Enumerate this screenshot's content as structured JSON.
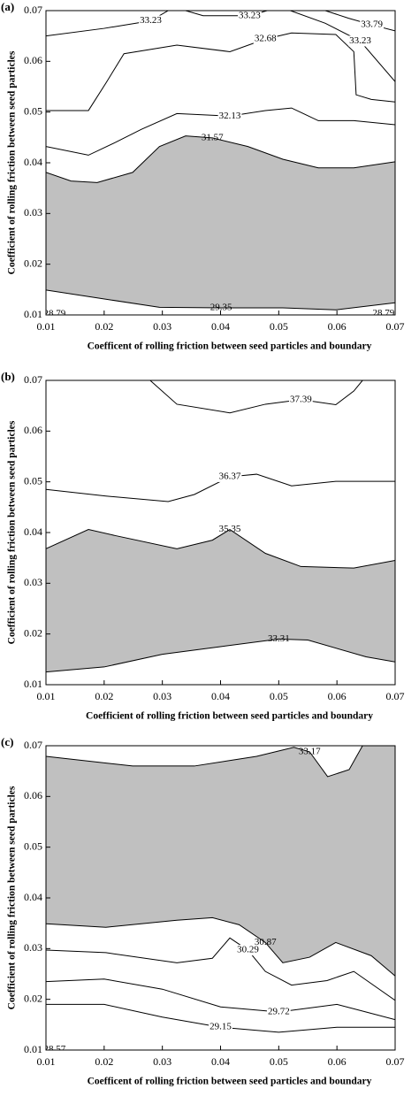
{
  "chart_data": [
    {
      "type": "contour",
      "panel": "(a)",
      "xlabel": "Coefficent of rolling friction between seed particles and boundary",
      "ylabel": "Coefficient of rolling friction between seed particles",
      "xlim": [
        0.01,
        0.07
      ],
      "ylim": [
        0.01,
        0.07
      ],
      "xticks": [
        0.01,
        0.02,
        0.03,
        0.04,
        0.05,
        0.06,
        0.07
      ],
      "yticks": [
        0.01,
        0.02,
        0.03,
        0.04,
        0.05,
        0.06,
        0.07
      ],
      "line_color": "#000000",
      "shade_color": "#c0c0c0",
      "contours": [
        {
          "level": 33.23,
          "x": [
            0.01,
            0.02,
            0.028,
            0.031
          ],
          "y": [
            0.065,
            0.0665,
            0.068,
            0.07
          ]
        },
        {
          "level": 33.23,
          "x": [
            0.034,
            0.037,
            0.045,
            0.048
          ],
          "y": [
            0.07,
            0.069,
            0.069,
            0.07
          ]
        },
        {
          "level": 33.79,
          "x": [
            0.058,
            0.062,
            0.066,
            0.07
          ],
          "y": [
            0.07,
            0.0685,
            0.0672,
            0.066
          ]
        },
        {
          "level": 33.23,
          "x": [
            0.052,
            0.058,
            0.064,
            0.07
          ],
          "y": [
            0.07,
            0.0675,
            0.064,
            0.056
          ]
        },
        {
          "level": 32.68,
          "x": [
            0.01,
            0.0173,
            0.0204,
            0.0234,
            0.0325,
            0.0416,
            0.0477,
            0.0522,
            0.0598,
            0.0629,
            0.0633,
            0.0659,
            0.07
          ],
          "y": [
            0.0503,
            0.0503,
            0.0559,
            0.0615,
            0.0632,
            0.0619,
            0.0644,
            0.0656,
            0.0653,
            0.0619,
            0.0534,
            0.0525,
            0.052
          ]
        },
        {
          "level": 32.13,
          "x": [
            0.01,
            0.0173,
            0.0219,
            0.0264,
            0.0325,
            0.0416,
            0.0477,
            0.0522,
            0.0568,
            0.0629,
            0.07
          ],
          "y": [
            0.0432,
            0.0415,
            0.044,
            0.0466,
            0.0497,
            0.0492,
            0.0503,
            0.0508,
            0.0483,
            0.0483,
            0.0475
          ]
        },
        {
          "level": 31.57,
          "shaded": true,
          "x": [
            0.01,
            0.0143,
            0.0188,
            0.0249,
            0.0295,
            0.034,
            0.0386,
            0.0447,
            0.0507,
            0.0568,
            0.0629,
            0.07
          ],
          "y": [
            0.0381,
            0.0364,
            0.0361,
            0.0381,
            0.0432,
            0.0453,
            0.0449,
            0.0432,
            0.0407,
            0.039,
            0.039,
            0.0402
          ]
        },
        {
          "level": 29.35,
          "x": [
            0.01,
            0.0203,
            0.0295,
            0.0401,
            0.0507,
            0.0598,
            0.07
          ],
          "y": [
            0.0149,
            0.0131,
            0.0115,
            0.0114,
            0.0114,
            0.011,
            0.0124
          ]
        },
        {
          "level": 28.79,
          "x": [
            0.01,
            0.0115,
            0.013
          ],
          "y": [
            0.0105,
            0.0102,
            0.01
          ]
        },
        {
          "level": 28.79,
          "x": [
            0.066,
            0.068,
            0.07
          ],
          "y": [
            0.01,
            0.0103,
            0.0106
          ]
        }
      ]
    },
    {
      "type": "contour",
      "panel": "(b)",
      "xlabel": "Coefficient of rolling friction between seed particles and boundary",
      "ylabel": "Coefficient of rolling friction between seed particles",
      "xlim": [
        0.01,
        0.07
      ],
      "ylim": [
        0.01,
        0.07
      ],
      "xticks": [
        0.01,
        0.02,
        0.03,
        0.04,
        0.05,
        0.06,
        0.07
      ],
      "yticks": [
        0.01,
        0.02,
        0.03,
        0.04,
        0.05,
        0.06,
        0.07
      ],
      "line_color": "#000000",
      "shade_color": "#c0c0c0",
      "contours": [
        {
          "level": 37.39,
          "x": [
            0.0279,
            0.0325,
            0.0416,
            0.0477,
            0.0538,
            0.0598,
            0.0629,
            0.0644
          ],
          "y": [
            0.07,
            0.0653,
            0.0636,
            0.0653,
            0.0662,
            0.0652,
            0.0679,
            0.07
          ]
        },
        {
          "level": 36.37,
          "x": [
            0.01,
            0.0203,
            0.031,
            0.0355,
            0.0416,
            0.0462,
            0.0522,
            0.0598,
            0.07
          ],
          "y": [
            0.0485,
            0.0472,
            0.0461,
            0.0475,
            0.051,
            0.0515,
            0.0492,
            0.0501,
            0.0501
          ]
        },
        {
          "level": 35.35,
          "shaded": true,
          "x": [
            0.01,
            0.0173,
            0.0219,
            0.0325,
            0.0386,
            0.0416,
            0.0477,
            0.0538,
            0.0629,
            0.07
          ],
          "y": [
            0.0368,
            0.0406,
            0.0394,
            0.0368,
            0.0385,
            0.0406,
            0.0359,
            0.0333,
            0.033,
            0.0345
          ]
        },
        {
          "level": 33.31,
          "x": [
            0.01,
            0.02,
            0.03,
            0.04,
            0.05,
            0.055,
            0.065,
            0.07
          ],
          "y": [
            0.0125,
            0.0135,
            0.016,
            0.0175,
            0.019,
            0.0188,
            0.0155,
            0.0145
          ]
        }
      ]
    },
    {
      "type": "contour",
      "panel": "(c)",
      "xlabel": "Coefficent of rolling friction between seed particles and boundary",
      "ylabel": "Coefficient of rolling friction between seed particles",
      "xlim": [
        0.01,
        0.07
      ],
      "ylim": [
        0.01,
        0.07
      ],
      "xticks": [
        0.01,
        0.02,
        0.03,
        0.04,
        0.05,
        0.06,
        0.07
      ],
      "yticks": [
        0.01,
        0.02,
        0.03,
        0.04,
        0.05,
        0.06,
        0.07
      ],
      "line_color": "#000000",
      "shade_color": "#c0c0c0",
      "contours": [
        {
          "level": 33.17,
          "shaded": true,
          "x": [
            0.01,
            0.0249,
            0.0355,
            0.0462,
            0.0526,
            0.0553,
            0.0584,
            0.0621,
            0.0644,
            0.07
          ],
          "y": [
            0.0679,
            0.066,
            0.066,
            0.0679,
            0.0697,
            0.0688,
            0.0639,
            0.0653,
            0.07,
            0.07
          ]
        },
        {
          "level": 30.87,
          "x": [
            0.01,
            0.0203,
            0.0325,
            0.0386,
            0.0432,
            0.0477,
            0.0507,
            0.0553,
            0.0598,
            0.0659,
            0.07
          ],
          "y": [
            0.0349,
            0.0342,
            0.0356,
            0.0361,
            0.0347,
            0.0312,
            0.0272,
            0.0283,
            0.0312,
            0.0286,
            0.0246
          ]
        },
        {
          "level": 30.29,
          "x": [
            0.01,
            0.0203,
            0.0325,
            0.0386,
            0.0416,
            0.0447,
            0.0477,
            0.0522,
            0.0583,
            0.0629,
            0.07
          ],
          "y": [
            0.0297,
            0.0292,
            0.0272,
            0.0281,
            0.0321,
            0.0297,
            0.0255,
            0.0228,
            0.0237,
            0.0255,
            0.0198
          ]
        },
        {
          "level": 29.72,
          "x": [
            0.01,
            0.02,
            0.03,
            0.04,
            0.05,
            0.06,
            0.065,
            0.07
          ],
          "y": [
            0.0235,
            0.024,
            0.022,
            0.0185,
            0.0175,
            0.019,
            0.0175,
            0.016
          ]
        },
        {
          "level": 29.15,
          "x": [
            0.01,
            0.02,
            0.03,
            0.04,
            0.05,
            0.06,
            0.07
          ],
          "y": [
            0.019,
            0.019,
            0.0165,
            0.0145,
            0.0135,
            0.0145,
            0.0145
          ]
        },
        {
          "level": 28.57,
          "x": [
            0.01,
            0.0115,
            0.013
          ],
          "y": [
            0.0103,
            0.0101,
            0.01
          ]
        }
      ]
    }
  ]
}
